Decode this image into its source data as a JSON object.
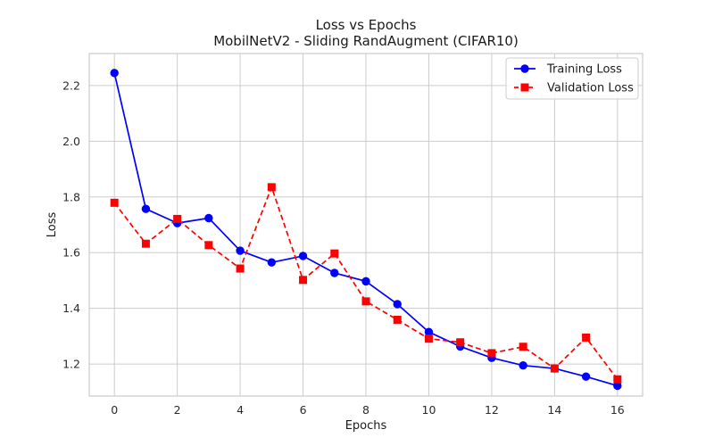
{
  "chart_data": {
    "type": "line",
    "title": "Loss vs Epochs",
    "subtitle": "MobilNetV2 - Sliding RandAugment (CIFAR10)",
    "xlabel": "Epochs",
    "ylabel": "Loss",
    "xlim": [
      -0.8,
      16.8
    ],
    "ylim": [
      1.085,
      2.315
    ],
    "xticks": [
      0,
      2,
      4,
      6,
      8,
      10,
      12,
      14,
      16
    ],
    "yticks": [
      1.2,
      1.4,
      1.6,
      1.8,
      2.0,
      2.2
    ],
    "grid": true,
    "legend_position": "top-right",
    "x": [
      0,
      1,
      2,
      3,
      4,
      5,
      6,
      7,
      8,
      9,
      10,
      11,
      12,
      13,
      14,
      15,
      16
    ],
    "series": [
      {
        "name": "Training Loss",
        "color": "#0000ff",
        "line_style": "solid",
        "marker": "circle",
        "values": [
          2.245,
          1.757,
          1.706,
          1.724,
          1.607,
          1.565,
          1.588,
          1.527,
          1.497,
          1.415,
          1.315,
          1.263,
          1.222,
          1.195,
          1.184,
          1.155,
          1.122
        ]
      },
      {
        "name": "Validation Loss",
        "color": "#ff0000",
        "line_style": "dashed",
        "marker": "square",
        "values": [
          1.779,
          1.632,
          1.721,
          1.627,
          1.543,
          1.835,
          1.502,
          1.597,
          1.425,
          1.359,
          1.291,
          1.278,
          1.239,
          1.262,
          1.184,
          1.295,
          1.145
        ]
      }
    ]
  }
}
